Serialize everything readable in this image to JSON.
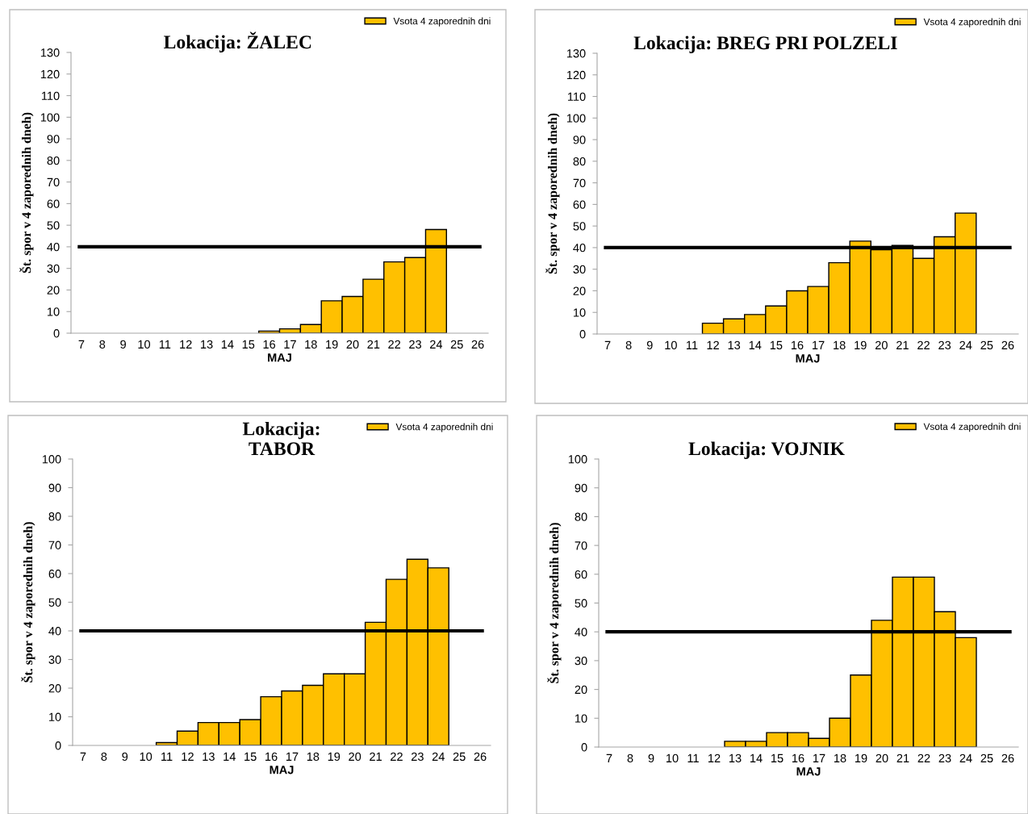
{
  "chart_data": [
    {
      "type": "bar",
      "title": "Lokacija: ŽALEC",
      "xlabel": "MAJ",
      "ylabel": "Št. spor v 4 zaporednih dneh)",
      "categories": [
        "7",
        "8",
        "9",
        "10",
        "11",
        "12",
        "13",
        "14",
        "15",
        "16",
        "17",
        "18",
        "19",
        "20",
        "21",
        "22",
        "23",
        "24",
        "25",
        "26"
      ],
      "series": [
        {
          "name": "Vsota 4 zaporednih dni",
          "color": "#ffc000",
          "values": [
            null,
            null,
            null,
            null,
            null,
            null,
            null,
            null,
            null,
            1,
            2,
            4,
            15,
            17,
            25,
            33,
            35,
            48,
            null,
            null
          ]
        }
      ],
      "ylim": [
        0,
        130
      ],
      "yticks": [
        0,
        10,
        20,
        30,
        40,
        50,
        60,
        70,
        80,
        90,
        100,
        110,
        120,
        130
      ],
      "ref_lines": [
        {
          "axis": "y",
          "value": 40,
          "color": "#000000"
        }
      ],
      "legend": "top right",
      "grid": false
    },
    {
      "type": "bar",
      "title": "Lokacija: BREG PRI POLZELI",
      "xlabel": "MAJ",
      "ylabel": "Št. spor v 4 zaporednih dneh)",
      "categories": [
        "7",
        "8",
        "9",
        "10",
        "11",
        "12",
        "13",
        "14",
        "15",
        "16",
        "17",
        "18",
        "19",
        "20",
        "21",
        "22",
        "23",
        "24",
        "25",
        "26"
      ],
      "series": [
        {
          "name": "Vsota 4 zaporednih dni",
          "color": "#ffc000",
          "values": [
            null,
            null,
            null,
            null,
            null,
            5,
            7,
            9,
            13,
            20,
            22,
            33,
            43,
            39,
            41,
            35,
            45,
            56,
            null,
            null
          ]
        }
      ],
      "ylim": [
        0,
        130
      ],
      "yticks": [
        0,
        10,
        20,
        30,
        40,
        50,
        60,
        70,
        80,
        90,
        100,
        110,
        120,
        130
      ],
      "ref_lines": [
        {
          "axis": "y",
          "value": 40,
          "color": "#000000"
        }
      ],
      "legend": "top right",
      "grid": false
    },
    {
      "type": "bar",
      "title": "Lokacija:\nTABOR",
      "xlabel": "MAJ",
      "ylabel": "Št. spor v 4 zaporednih dneh)",
      "categories": [
        "7",
        "8",
        "9",
        "10",
        "11",
        "12",
        "13",
        "14",
        "15",
        "16",
        "17",
        "18",
        "19",
        "20",
        "21",
        "22",
        "23",
        "24",
        "25",
        "26"
      ],
      "series": [
        {
          "name": "Vsota 4 zaporednih dni",
          "color": "#ffc000",
          "values": [
            null,
            null,
            null,
            null,
            1,
            5,
            8,
            8,
            9,
            17,
            19,
            21,
            25,
            25,
            43,
            58,
            65,
            62,
            null,
            null
          ]
        }
      ],
      "ylim": [
        0,
        100
      ],
      "yticks": [
        0,
        10,
        20,
        30,
        40,
        50,
        60,
        70,
        80,
        90,
        100
      ],
      "ref_lines": [
        {
          "axis": "y",
          "value": 40,
          "color": "#000000"
        }
      ],
      "legend": "top right",
      "grid": false
    },
    {
      "type": "bar",
      "title": "Lokacija: VOJNIK",
      "xlabel": "MAJ",
      "ylabel": "Št. spor v 4 zaporednih dneh)",
      "categories": [
        "7",
        "8",
        "9",
        "10",
        "11",
        "12",
        "13",
        "14",
        "15",
        "16",
        "17",
        "18",
        "19",
        "20",
        "21",
        "22",
        "23",
        "24",
        "25",
        "26"
      ],
      "series": [
        {
          "name": "Vsota 4 zaporednih dni",
          "color": "#ffc000",
          "values": [
            null,
            null,
            null,
            null,
            null,
            null,
            2,
            2,
            5,
            5,
            3,
            10,
            25,
            44,
            59,
            59,
            47,
            38,
            null,
            null
          ]
        }
      ],
      "ylim": [
        0,
        100
      ],
      "yticks": [
        0,
        10,
        20,
        30,
        40,
        50,
        60,
        70,
        80,
        90,
        100
      ],
      "ref_lines": [
        {
          "axis": "y",
          "value": 40,
          "color": "#000000"
        }
      ],
      "legend": "top right",
      "grid": false
    }
  ]
}
